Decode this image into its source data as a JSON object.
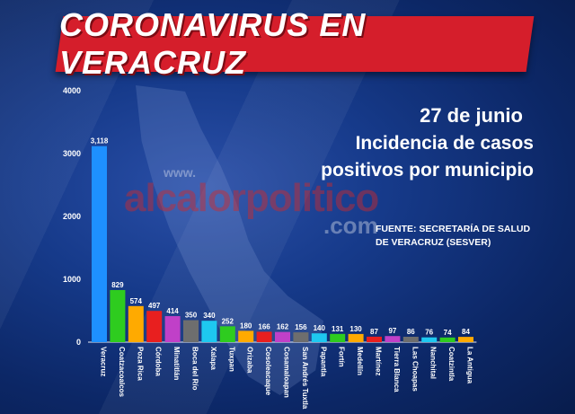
{
  "banner": {
    "title": "CORONAVIRUS EN VERACRUZ"
  },
  "watermark": {
    "www": "www.",
    "brand": "alcalorpolitico",
    "com": ".com"
  },
  "info": {
    "date": "27 de junio",
    "line1": "Incidencia de casos",
    "line2": "positivos por municipio",
    "source": "FUENTE: SECRETARÍA DE SALUD DE VERACRUZ (SESVER)"
  },
  "chart_data": {
    "type": "bar",
    "title": "",
    "xlabel": "",
    "ylabel": "",
    "ylim": [
      0,
      4000
    ],
    "yticks": [
      0,
      1000,
      2000,
      3000,
      4000
    ],
    "grid": false,
    "categories": [
      "Veracruz",
      "Coatzacoalcos",
      "Poza Rica",
      "Córdoba",
      "Minatitlán",
      "Boca del Río",
      "Xalapa",
      "Tuxpan",
      "Orizaba",
      "Cosoleacaque",
      "Cosamaloapan",
      "San Andrés Tuxtla",
      "Papantla",
      "Fortín",
      "Medellín",
      "Martínez",
      "Tierra Blanca",
      "Las Choapas",
      "Nanchital",
      "Coatzintla",
      "La Antigua"
    ],
    "values": [
      3118,
      829,
      574,
      497,
      414,
      350,
      340,
      252,
      180,
      166,
      162,
      156,
      140,
      131,
      130,
      87,
      97,
      86,
      76,
      74,
      84
    ],
    "value_labels": [
      "3,118",
      "829",
      "574",
      "497",
      "414",
      "350",
      "340",
      "252",
      "180",
      "166",
      "162",
      "156",
      "140",
      "131",
      "130",
      "87",
      "97",
      "86",
      "76",
      "74",
      "84"
    ],
    "colors": [
      "#1e90ff",
      "#2ecc1f",
      "#ffaa00",
      "#e81f1f",
      "#c040c8",
      "#6e6e6e",
      "#1ec8f0",
      "#2ecc1f",
      "#ffaa00",
      "#e81f1f",
      "#c040c8",
      "#6e6e6e",
      "#1ec8f0",
      "#2ecc1f",
      "#ffaa00",
      "#e81f1f",
      "#c040c8",
      "#6e6e6e",
      "#1ec8f0",
      "#2ecc1f",
      "#ffaa00"
    ]
  }
}
